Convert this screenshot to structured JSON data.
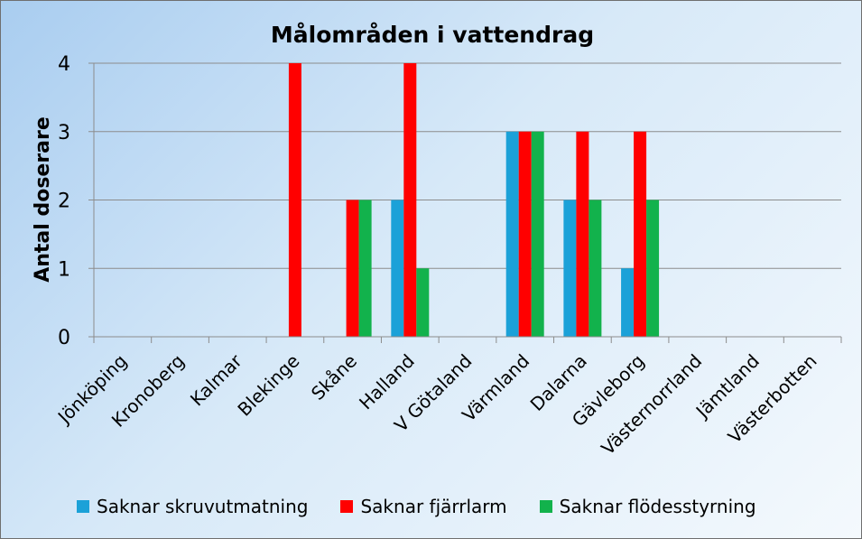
{
  "chart_data": {
    "type": "bar",
    "title": "Målområden i vattendrag",
    "ylabel": "Antal doserare",
    "xlabel": "",
    "ylim": [
      0,
      4
    ],
    "yticks": [
      0,
      1,
      2,
      3,
      4
    ],
    "grid": true,
    "legend_position": "bottom",
    "categories": [
      "Jönköping",
      "Kronoberg",
      "Kalmar",
      "Blekinge",
      "Skåne",
      "Halland",
      "V Götaland",
      "Värmland",
      "Dalarna",
      "Gävleborg",
      "Västernorrland",
      "Jämtland",
      "Västerbotten"
    ],
    "series": [
      {
        "name": "Saknar skruvutmatning",
        "color": "#1ba1d8",
        "values": [
          0,
          0,
          0,
          0,
          0,
          2,
          0,
          3,
          2,
          1,
          0,
          0,
          0
        ]
      },
      {
        "name": "Saknar fjärrlarm",
        "color": "#ff0000",
        "values": [
          0,
          0,
          0,
          4,
          2,
          4,
          0,
          3,
          3,
          3,
          0,
          0,
          0
        ]
      },
      {
        "name": "Saknar flödesstyrning",
        "color": "#12b24c",
        "values": [
          0,
          0,
          0,
          0,
          2,
          1,
          0,
          3,
          2,
          2,
          0,
          0,
          0
        ]
      }
    ]
  }
}
